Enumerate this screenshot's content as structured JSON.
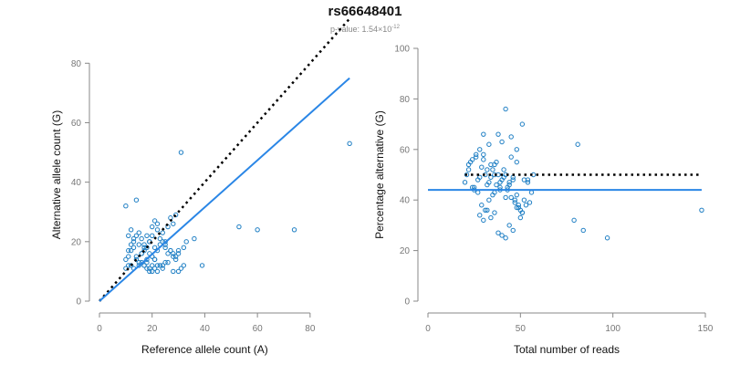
{
  "title": "rs66648401",
  "subtitle": {
    "prefix": "p-value: 1.54×10",
    "exponent": "-12"
  },
  "colors": {
    "points": "#1f7fc4",
    "fit_line": "#2a86e6",
    "dotted_line": "#000000",
    "axis": "#888888",
    "tick_text": "#777777",
    "label_text": "#111111"
  },
  "chart_data": [
    {
      "type": "scatter",
      "xlabel": "Reference allele count (A)",
      "ylabel": "Alternative allele count (G)",
      "xlim": [
        0,
        96
      ],
      "ylim": [
        0,
        85
      ],
      "xticks": [
        0,
        20,
        40,
        60,
        80
      ],
      "yticks": [
        0,
        20,
        40,
        60,
        80
      ],
      "x": [
        10,
        11,
        12,
        13,
        14,
        15,
        16,
        17,
        18,
        19,
        20,
        21,
        22,
        23,
        24,
        25,
        26,
        27,
        28,
        29,
        30,
        11,
        12,
        13,
        14,
        15,
        16,
        17,
        18,
        19,
        20,
        21,
        22,
        23,
        24,
        25,
        26,
        27,
        28,
        29,
        10,
        11,
        13,
        15,
        16,
        17,
        18,
        19,
        20,
        21,
        22,
        23,
        24,
        25,
        12,
        14,
        16,
        18,
        20,
        22,
        24,
        26,
        28,
        30,
        31,
        32,
        33,
        36,
        39,
        53,
        60,
        74,
        95,
        10,
        14,
        22,
        31,
        11,
        12,
        13,
        15,
        17,
        19,
        20,
        21,
        25,
        27,
        28,
        29,
        30,
        32,
        17,
        18,
        19,
        20,
        21
      ],
      "y": [
        14,
        15,
        17,
        18,
        15,
        13,
        16,
        17,
        18,
        16,
        15,
        14,
        17,
        19,
        20,
        18,
        16,
        17,
        15,
        14,
        16,
        22,
        24,
        20,
        22,
        23,
        21,
        19,
        22,
        20,
        25,
        27,
        24,
        21,
        23,
        19,
        25,
        28,
        26,
        29,
        11,
        12,
        11,
        12,
        13,
        12,
        11,
        10,
        10,
        11,
        10,
        12,
        11,
        13,
        12,
        14,
        16,
        14,
        15,
        12,
        12,
        13,
        10,
        10,
        11,
        12,
        20,
        21,
        12,
        25,
        24,
        24,
        53,
        32,
        34,
        26,
        50,
        17,
        19,
        21,
        19,
        18,
        20,
        22,
        18,
        20,
        17,
        16,
        15,
        17,
        18,
        12,
        13,
        11,
        12,
        14
      ],
      "dotted_line": {
        "x": [
          0,
          95
        ],
        "y": [
          0,
          95
        ]
      },
      "fit_line": {
        "x": [
          0,
          95
        ],
        "y": [
          0,
          75
        ]
      }
    },
    {
      "type": "scatter",
      "xlabel": "Total number of reads",
      "ylabel": "Percentage alternative (G)",
      "xlim": [
        0,
        150
      ],
      "ylim": [
        0,
        100
      ],
      "xticks": [
        0,
        50,
        100,
        150
      ],
      "yticks": [
        0,
        20,
        40,
        60,
        80,
        100
      ],
      "x": [
        20,
        21,
        22,
        23,
        24,
        25,
        26,
        27,
        28,
        29,
        30,
        31,
        32,
        33,
        34,
        35,
        36,
        37,
        38,
        39,
        40,
        41,
        42,
        43,
        44,
        45,
        46,
        47,
        48,
        49,
        50,
        51,
        52,
        53,
        54,
        55,
        56,
        57,
        22,
        24,
        26,
        28,
        30,
        32,
        34,
        36,
        38,
        40,
        42,
        44,
        46,
        48,
        25,
        27,
        29,
        31,
        33,
        35,
        37,
        39,
        41,
        43,
        45,
        47,
        49,
        51,
        28,
        30,
        32,
        34,
        36,
        38,
        40,
        42,
        44,
        46,
        48,
        50,
        52,
        54,
        30,
        33,
        36,
        39,
        42,
        45,
        48,
        51,
        79,
        81,
        84,
        97,
        148
      ],
      "y": [
        47,
        50,
        52,
        55,
        45,
        44,
        57,
        48,
        49,
        53,
        58,
        50,
        46,
        47,
        54,
        52,
        43,
        55,
        50,
        45,
        48,
        52,
        41,
        44,
        46,
        57,
        49,
        40,
        42,
        38,
        36,
        35,
        40,
        38,
        47,
        39,
        43,
        50,
        54,
        56,
        58,
        60,
        56,
        52,
        49,
        50,
        66,
        63,
        50,
        47,
        48,
        60,
        45,
        43,
        38,
        36,
        40,
        42,
        46,
        44,
        49,
        45,
        41,
        39,
        37,
        35,
        34,
        32,
        36,
        33,
        35,
        27,
        26,
        25,
        30,
        28,
        37,
        33,
        48,
        48,
        66,
        62,
        54,
        47,
        76,
        65,
        55,
        70,
        32,
        62,
        28,
        25,
        36
      ],
      "dotted_line": {
        "x": [
          20,
          148
        ],
        "y": [
          50,
          50
        ]
      },
      "fit_line": {
        "x": [
          0,
          148
        ],
        "y": [
          44,
          44
        ]
      }
    }
  ]
}
